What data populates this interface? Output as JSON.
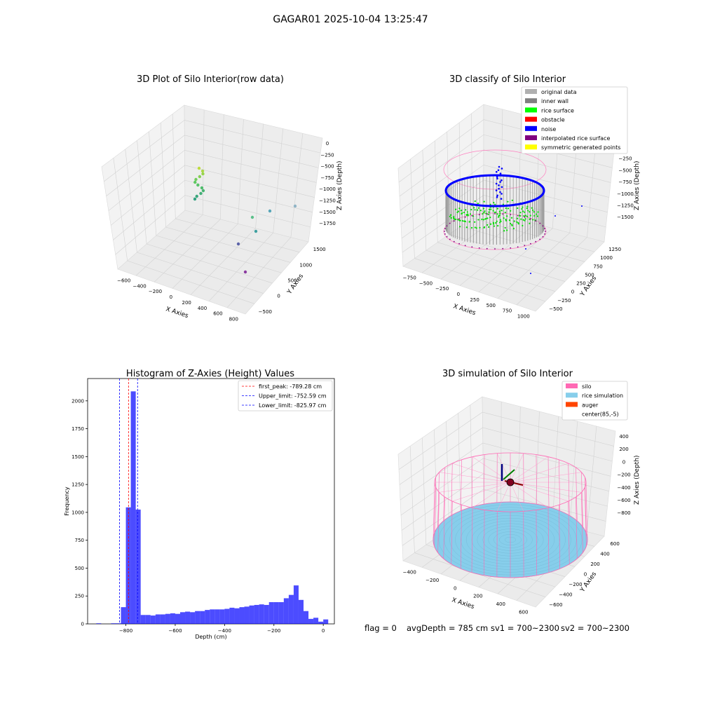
{
  "figure": {
    "suptitle": "GAGAR01 2025-10-04 13:25:47",
    "footer": {
      "flag": "flag = 0",
      "avg_depth": "avgDepth = 785 cm",
      "sv1": "sv1 = 700~2300",
      "sv2": "sv2 = 700~2300"
    }
  },
  "chart_data": [
    {
      "type": "scatter",
      "projection": "3d",
      "title": "3D Plot of Silo Interior(row data)",
      "xlabel": "X Axies",
      "ylabel": "Y Axies",
      "zlabel": "Z Axies (Depth)",
      "xticks": [
        "−600",
        "−400",
        "−200",
        "0",
        "200",
        "400",
        "600",
        "800"
      ],
      "yticks": [
        "−500",
        "0",
        "500",
        "1000",
        "1500"
      ],
      "zticks": [
        "0",
        "−250",
        "−500",
        "−750",
        "−1000",
        "−1250",
        "−1500",
        "−1750"
      ],
      "colormap": "viridis",
      "grid": true
    },
    {
      "type": "scatter",
      "projection": "3d",
      "title": "3D classify of Silo Interior",
      "xlabel": "X Axies",
      "ylabel": "Y Axies",
      "zlabel": "Z Axies (Depth)",
      "xticks": [
        "−750",
        "−500",
        "−250",
        "0",
        "250",
        "500",
        "750",
        "1000"
      ],
      "yticks": [
        "−500",
        "−250",
        "0",
        "250",
        "500",
        "750",
        "1000",
        "1250"
      ],
      "zticks": [
        "0",
        "−250",
        "−500",
        "−750",
        "−1000",
        "−1250",
        "−1500"
      ],
      "legend_position": "top-right",
      "legend": [
        {
          "label": "original data",
          "color": "#b0b0b0"
        },
        {
          "label": "inner wall",
          "color": "#808080"
        },
        {
          "label": "rice surface",
          "color": "#00ff00"
        },
        {
          "label": "obstacle",
          "color": "#ff0000"
        },
        {
          "label": "noise",
          "color": "#0000ff"
        },
        {
          "label": "interpolated rice surface",
          "color": "#800080"
        },
        {
          "label": "symmetric generated points",
          "color": "#ffff00"
        }
      ],
      "grid": true
    },
    {
      "type": "bar",
      "title": "Histogram of Z-Axies (Height) Values",
      "xlabel": "Depth (cm)",
      "ylabel": "Frequency",
      "xlim": [
        -955,
        45
      ],
      "ylim": [
        0,
        2200
      ],
      "xticks": [
        "−800",
        "−600",
        "−400",
        "−200",
        "0"
      ],
      "yticks": [
        "0",
        "250",
        "500",
        "750",
        "1000",
        "1250",
        "1500",
        "1750",
        "2000"
      ],
      "bar_color": "#0000ff",
      "bin_width": 20,
      "bin_starts": [
        -920,
        -900,
        -880,
        -860,
        -840,
        -820,
        -800,
        -780,
        -760,
        -740,
        -720,
        -700,
        -680,
        -660,
        -640,
        -620,
        -600,
        -580,
        -560,
        -540,
        -520,
        -500,
        -480,
        -460,
        -440,
        -420,
        -400,
        -380,
        -360,
        -340,
        -320,
        -300,
        -280,
        -260,
        -240,
        -220,
        -200,
        -180,
        -160,
        -140,
        -120,
        -100,
        -80,
        -60,
        -40,
        -20,
        0
      ],
      "values": [
        5,
        0,
        0,
        5,
        5,
        150,
        1045,
        2085,
        1025,
        80,
        80,
        75,
        85,
        85,
        90,
        95,
        90,
        105,
        110,
        105,
        115,
        115,
        125,
        130,
        130,
        130,
        135,
        145,
        140,
        150,
        155,
        165,
        170,
        175,
        170,
        195,
        195,
        195,
        230,
        260,
        345,
        215,
        115,
        45,
        55,
        20,
        40
      ],
      "vlines": [
        {
          "x": -789.28,
          "label": "first_peak: -789.28 cm",
          "color": "#ff0000"
        },
        {
          "x": -752.59,
          "label": "Upper_limit: -752.59 cm",
          "color": "#0000ff"
        },
        {
          "x": -825.97,
          "label": "Lower_limit: -825.97 cm",
          "color": "#0000ff"
        }
      ],
      "legend_position": "top-right"
    },
    {
      "type": "scatter",
      "projection": "3d",
      "title": "3D simulation of Silo Interior",
      "xlabel": "X Axies",
      "ylabel": "Y Axies",
      "zlabel": "Z Axies (Depth)",
      "xticks": [
        "−400",
        "−200",
        "0",
        "200",
        "400",
        "600"
      ],
      "yticks": [
        "−600",
        "−400",
        "−200",
        "0",
        "200",
        "400",
        "600"
      ],
      "zticks": [
        "400",
        "200",
        "0",
        "−200",
        "−400",
        "−600",
        "−800"
      ],
      "legend_position": "top-right",
      "legend": [
        {
          "label": "silo",
          "color": "#ff69b4"
        },
        {
          "label": "rice simulation",
          "color": "#87ceeb"
        },
        {
          "label": "auger",
          "color": "#ff4500"
        },
        {
          "label": "center(85,-5)",
          "color": ""
        }
      ],
      "grid": true
    }
  ]
}
